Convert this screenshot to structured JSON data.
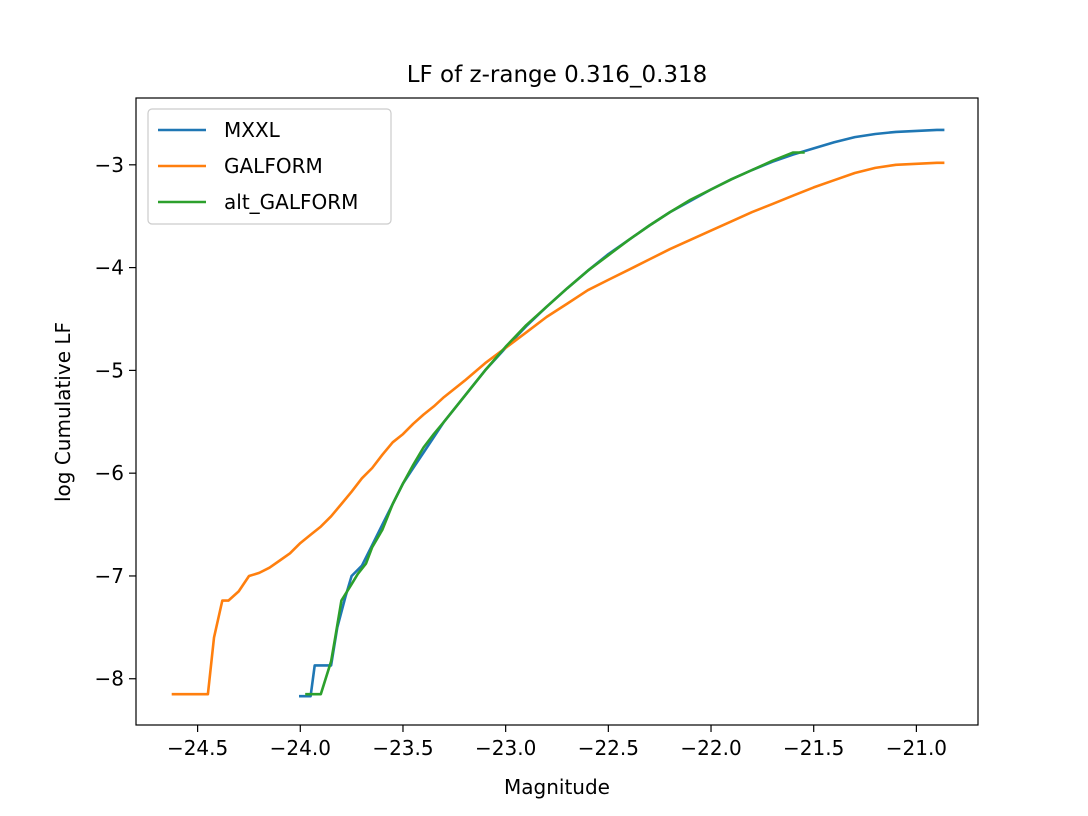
{
  "chart_data": {
    "type": "line",
    "title": "LF of z-range 0.316_0.318",
    "xlabel": "Magnitude",
    "ylabel": "log Cumulative LF",
    "xlim": [
      -24.8,
      -20.7
    ],
    "ylim": [
      -8.45,
      -2.35
    ],
    "xticks": [
      -24.5,
      -24.0,
      -23.5,
      -23.0,
      -22.5,
      -22.0,
      -21.5,
      -21.0
    ],
    "xtick_labels": [
      "−24.5",
      "−24.0",
      "−23.5",
      "−23.0",
      "−22.5",
      "−22.0",
      "−21.5",
      "−21.0"
    ],
    "yticks": [
      -8,
      -7,
      -6,
      -5,
      -4,
      -3
    ],
    "ytick_labels": [
      "−8",
      "−7",
      "−6",
      "−5",
      "−4",
      "−3"
    ],
    "grid": false,
    "legend_position": "upper-left",
    "series": [
      {
        "name": "MXXL",
        "color": "#1f77b4",
        "x": [
          -24.0,
          -23.95,
          -23.93,
          -23.85,
          -23.82,
          -23.78,
          -23.75,
          -23.7,
          -23.65,
          -23.6,
          -23.55,
          -23.5,
          -23.45,
          -23.4,
          -23.35,
          -23.3,
          -23.2,
          -23.1,
          -23.0,
          -22.9,
          -22.8,
          -22.7,
          -22.6,
          -22.5,
          -22.4,
          -22.3,
          -22.2,
          -22.1,
          -22.0,
          -21.9,
          -21.8,
          -21.7,
          -21.6,
          -21.5,
          -21.4,
          -21.3,
          -21.2,
          -21.1,
          -21.0,
          -20.9,
          -20.87
        ],
        "y": [
          -8.17,
          -8.17,
          -7.87,
          -7.87,
          -7.5,
          -7.2,
          -7.0,
          -6.9,
          -6.7,
          -6.5,
          -6.3,
          -6.1,
          -5.95,
          -5.8,
          -5.65,
          -5.5,
          -5.25,
          -5.0,
          -4.78,
          -4.57,
          -4.38,
          -4.2,
          -4.03,
          -3.87,
          -3.73,
          -3.59,
          -3.46,
          -3.35,
          -3.24,
          -3.14,
          -3.05,
          -2.97,
          -2.9,
          -2.84,
          -2.78,
          -2.73,
          -2.7,
          -2.68,
          -2.67,
          -2.66,
          -2.66
        ]
      },
      {
        "name": "GALFORM",
        "color": "#ff7f0e",
        "x": [
          -24.62,
          -24.45,
          -24.42,
          -24.38,
          -24.35,
          -24.3,
          -24.25,
          -24.2,
          -24.15,
          -24.1,
          -24.05,
          -24.0,
          -23.95,
          -23.9,
          -23.85,
          -23.8,
          -23.75,
          -23.7,
          -23.65,
          -23.6,
          -23.55,
          -23.5,
          -23.45,
          -23.4,
          -23.35,
          -23.3,
          -23.2,
          -23.1,
          -23.0,
          -22.9,
          -22.8,
          -22.7,
          -22.6,
          -22.5,
          -22.4,
          -22.3,
          -22.2,
          -22.1,
          -22.0,
          -21.9,
          -21.8,
          -21.7,
          -21.6,
          -21.5,
          -21.4,
          -21.3,
          -21.2,
          -21.1,
          -21.0,
          -20.9,
          -20.87
        ],
        "y": [
          -8.15,
          -8.15,
          -7.6,
          -7.24,
          -7.24,
          -7.15,
          -7.0,
          -6.97,
          -6.92,
          -6.85,
          -6.78,
          -6.68,
          -6.6,
          -6.52,
          -6.42,
          -6.3,
          -6.18,
          -6.05,
          -5.95,
          -5.82,
          -5.7,
          -5.62,
          -5.52,
          -5.43,
          -5.35,
          -5.26,
          -5.1,
          -4.93,
          -4.78,
          -4.63,
          -4.48,
          -4.35,
          -4.22,
          -4.12,
          -4.02,
          -3.92,
          -3.82,
          -3.73,
          -3.64,
          -3.55,
          -3.46,
          -3.38,
          -3.3,
          -3.22,
          -3.15,
          -3.08,
          -3.03,
          -3.0,
          -2.99,
          -2.98,
          -2.98
        ]
      },
      {
        "name": "alt_GALFORM",
        "color": "#2ca02c",
        "x": [
          -23.97,
          -23.9,
          -23.85,
          -23.83,
          -23.8,
          -23.75,
          -23.72,
          -23.68,
          -23.65,
          -23.6,
          -23.55,
          -23.5,
          -23.45,
          -23.4,
          -23.35,
          -23.3,
          -23.2,
          -23.1,
          -23.0,
          -22.9,
          -22.8,
          -22.7,
          -22.6,
          -22.5,
          -22.4,
          -22.3,
          -22.2,
          -22.1,
          -22.0,
          -21.9,
          -21.8,
          -21.7,
          -21.6,
          -21.55
        ],
        "y": [
          -8.15,
          -8.15,
          -7.83,
          -7.6,
          -7.24,
          -7.08,
          -6.98,
          -6.88,
          -6.72,
          -6.55,
          -6.3,
          -6.1,
          -5.92,
          -5.75,
          -5.62,
          -5.5,
          -5.25,
          -5.0,
          -4.77,
          -4.56,
          -4.38,
          -4.2,
          -4.03,
          -3.88,
          -3.73,
          -3.59,
          -3.46,
          -3.34,
          -3.24,
          -3.14,
          -3.05,
          -2.96,
          -2.88,
          -2.88
        ]
      }
    ]
  }
}
